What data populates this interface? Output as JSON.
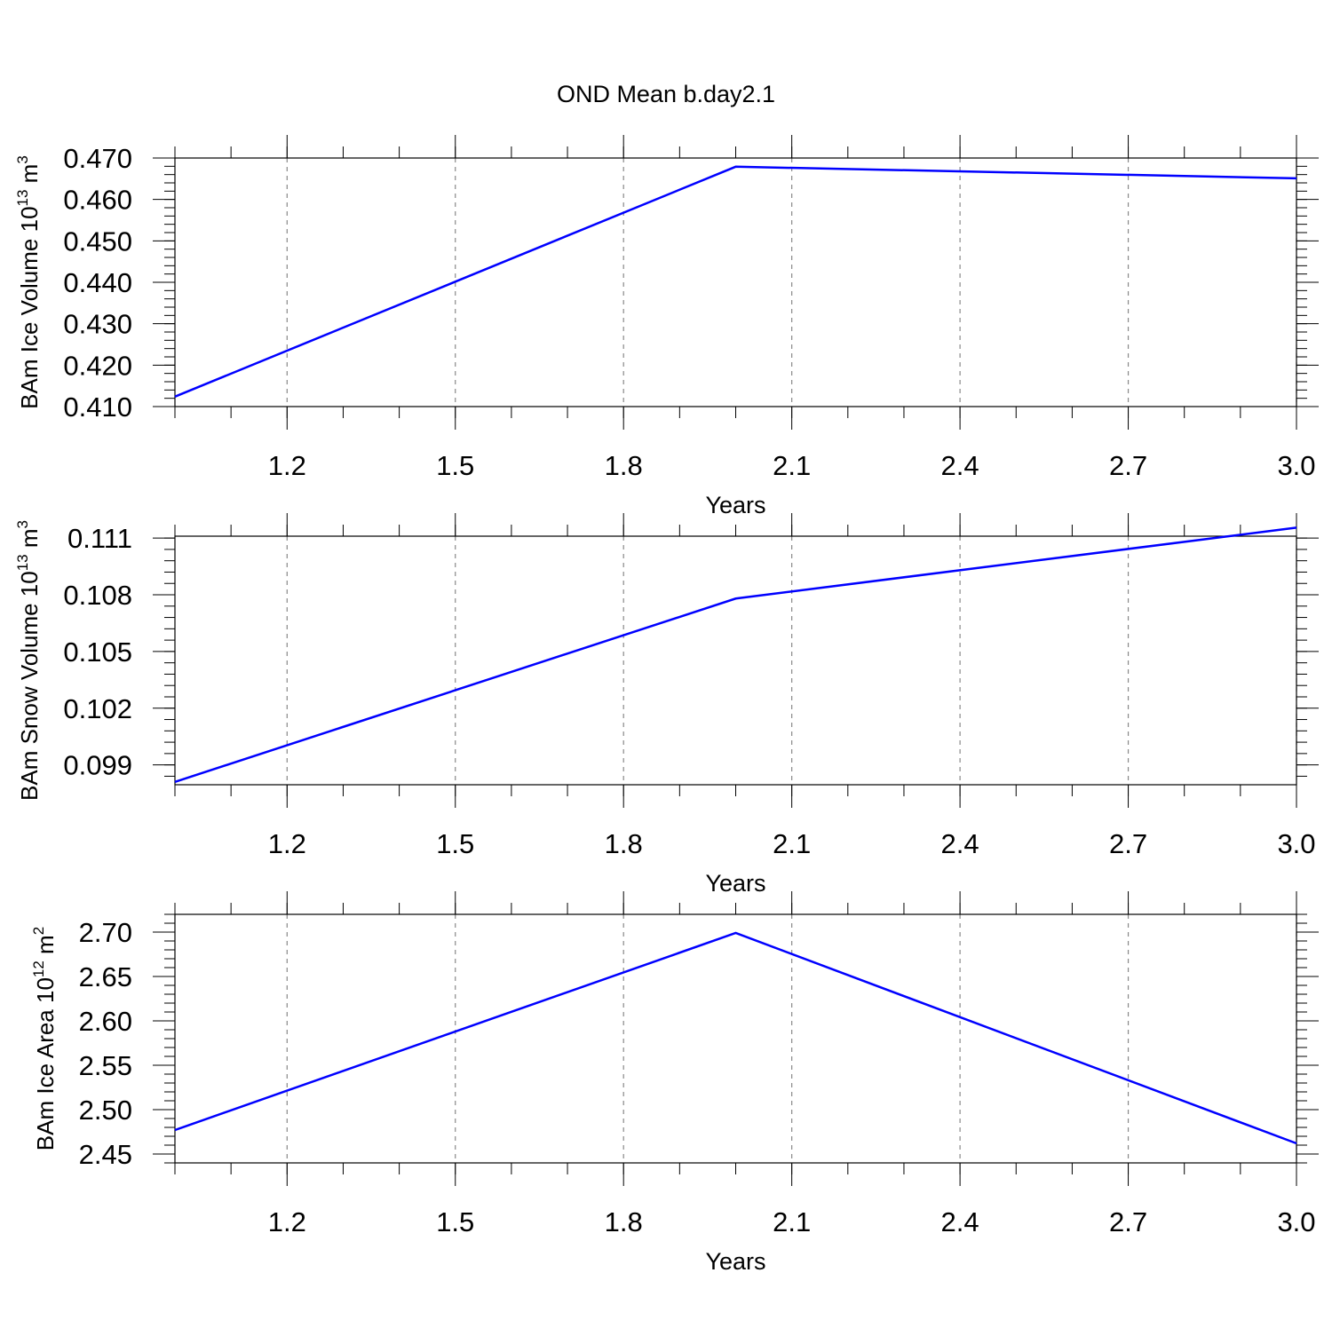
{
  "chart_data": [
    {
      "type": "line",
      "title": "OND Mean b.day2.1",
      "ylabel_parts": [
        "BAm Ice Volume 10",
        "13",
        " m",
        "3"
      ],
      "xlabel": "Years",
      "x": [
        1,
        2,
        3
      ],
      "series": [
        {
          "color": "#0000ff",
          "values": [
            0.4124,
            0.4679,
            0.4651
          ]
        }
      ],
      "xlim": [
        1,
        3
      ],
      "xticks": [
        1.2,
        1.5,
        1.8,
        2.1,
        2.4,
        2.7,
        {
          "value": 3,
          "label": "3.0"
        }
      ],
      "ylim": [
        0.41,
        0.47
      ],
      "yticks": [
        {
          "value": 0.41,
          "label": "0.410"
        },
        {
          "value": 0.42,
          "label": "0.420"
        },
        {
          "value": 0.43,
          "label": "0.430"
        },
        {
          "value": 0.44,
          "label": "0.440"
        },
        {
          "value": 0.45,
          "label": "0.450"
        },
        {
          "value": 0.46,
          "label": "0.460"
        },
        {
          "value": 0.47,
          "label": "0.470"
        }
      ],
      "grid": "x-dashed"
    },
    {
      "type": "line",
      "ylabel_parts": [
        "BAm Snow Volume 10",
        "13",
        " m",
        "3"
      ],
      "xlabel": "Years",
      "x": [
        1,
        2,
        3
      ],
      "series": [
        {
          "color": "#0000ff",
          "values": [
            0.0981,
            0.1078,
            0.11155
          ]
        }
      ],
      "xlim": [
        1,
        3
      ],
      "xticks": [
        1.2,
        1.5,
        1.8,
        2.1,
        2.4,
        2.7,
        {
          "value": 3,
          "label": "3.0"
        }
      ],
      "ylim": [
        0.09795,
        0.1111
      ],
      "yticks": [
        0.099,
        0.102,
        0.105,
        0.108,
        0.111
      ],
      "grid": "x-dashed"
    },
    {
      "type": "line",
      "ylabel_parts": [
        "BAm Ice Area 10",
        "12",
        " m",
        "2"
      ],
      "xlabel": "Years",
      "x": [
        1,
        2,
        3
      ],
      "series": [
        {
          "color": "#0000ff",
          "values": [
            2.477,
            2.699,
            2.462
          ]
        }
      ],
      "xlim": [
        1,
        3
      ],
      "xticks": [
        1.2,
        1.5,
        1.8,
        2.1,
        2.4,
        2.7,
        {
          "value": 3,
          "label": "3.0"
        }
      ],
      "ylim": [
        2.44,
        2.72
      ],
      "yticks": [
        2.45,
        {
          "value": 2.5,
          "label": "2.50"
        },
        2.55,
        {
          "value": 2.6,
          "label": "2.60"
        },
        2.65,
        {
          "value": 2.7,
          "label": "2.70"
        }
      ],
      "grid": "x-dashed"
    }
  ]
}
